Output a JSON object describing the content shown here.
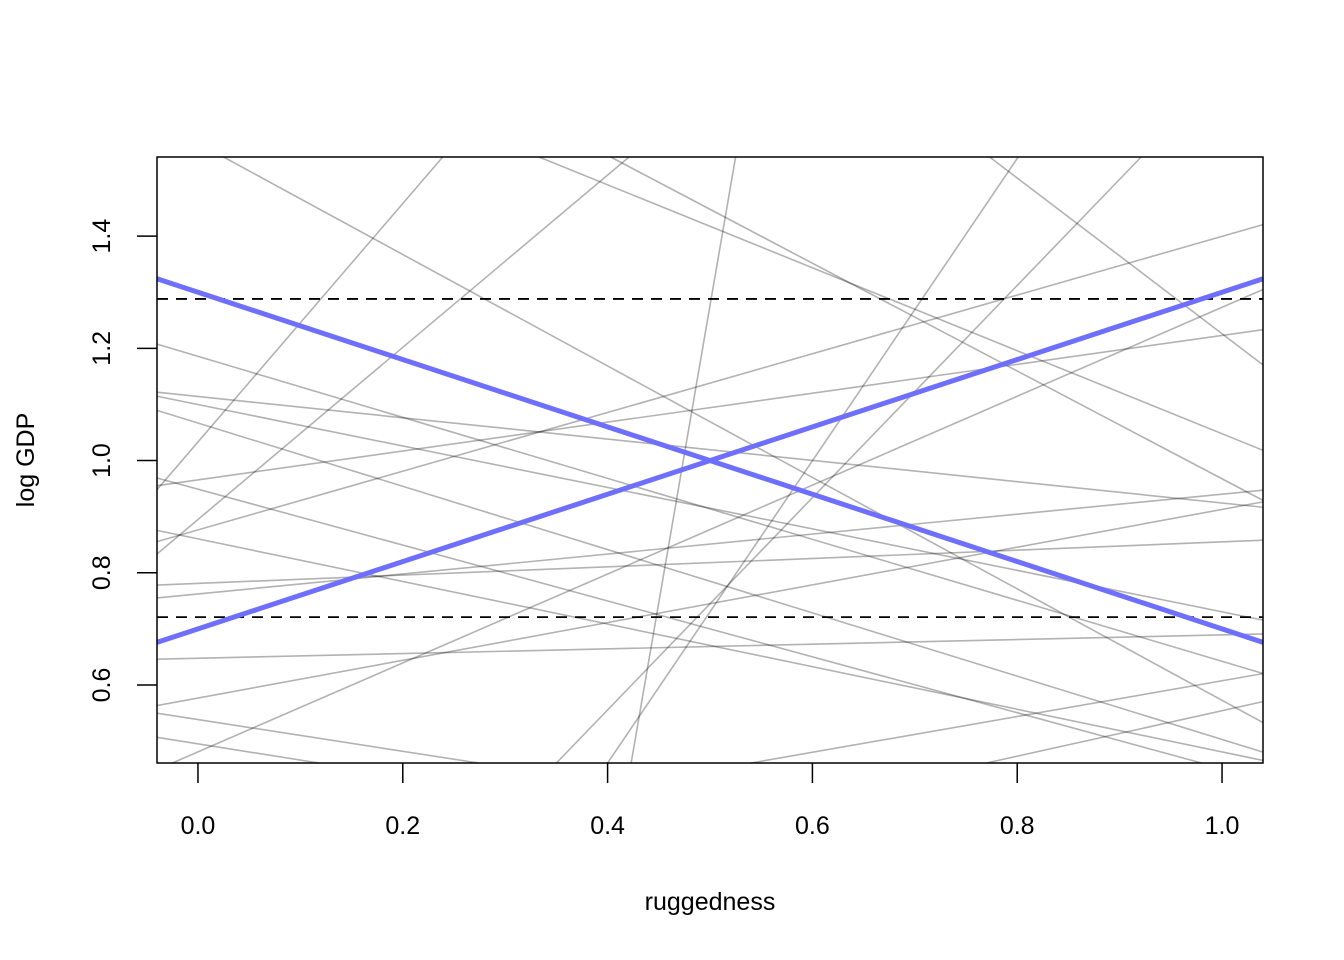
{
  "chart_data": {
    "type": "line",
    "title": "",
    "xlabel": "ruggedness",
    "ylabel": "log GDP",
    "xlim": [
      -0.04,
      1.04
    ],
    "ylim": [
      0.461,
      1.541
    ],
    "x_ticks": [
      "0.0",
      "0.2",
      "0.4",
      "0.6",
      "0.8",
      "1.0"
    ],
    "y_ticks": [
      "0.6",
      "0.8",
      "1.0",
      "1.2",
      "1.4"
    ],
    "grid": false,
    "colors": {
      "highlight": "#6f6fff",
      "sample": "#000000",
      "reference": "#000000"
    },
    "reference_lines": [
      {
        "y": 1.288,
        "style": "dashed"
      },
      {
        "y": 0.721,
        "style": "dashed"
      }
    ],
    "highlight_lines": [
      {
        "points": [
          [
            0.0,
            1.3
          ],
          [
            1.0,
            0.7
          ]
        ]
      },
      {
        "points": [
          [
            0.0,
            0.7
          ],
          [
            1.0,
            1.3
          ]
        ]
      }
    ],
    "sample_lines": [
      [
        [
          0.025,
          1.541
        ],
        [
          1.039,
          0.534
        ]
      ],
      [
        [
          -0.041,
          1.208
        ],
        [
          1.039,
          0.621
        ]
      ],
      [
        [
          -0.041,
          1.122
        ],
        [
          1.039,
          0.917
        ]
      ],
      [
        [
          -0.041,
          1.115
        ],
        [
          1.039,
          0.716
        ]
      ],
      [
        [
          -0.041,
          1.09
        ],
        [
          1.039,
          0.481
        ]
      ],
      [
        [
          -0.041,
          0.955
        ],
        [
          1.039,
          1.233
        ]
      ],
      [
        [
          -0.041,
          0.946
        ],
        [
          0.239,
          1.541
        ]
      ],
      [
        [
          -0.041,
          0.832
        ],
        [
          0.421,
          1.541
        ]
      ],
      [
        [
          -0.041,
          0.855
        ],
        [
          1.039,
          1.42
        ]
      ],
      [
        [
          -0.041,
          0.876
        ],
        [
          1.039,
          0.466
        ]
      ],
      [
        [
          -0.041,
          0.778
        ],
        [
          1.039,
          0.858
        ]
      ],
      [
        [
          -0.041,
          0.755
        ],
        [
          1.039,
          0.947
        ]
      ],
      [
        [
          -0.041,
          0.646
        ],
        [
          1.039,
          0.691
        ]
      ],
      [
        [
          -0.041,
          0.563
        ],
        [
          1.039,
          0.926
        ]
      ],
      [
        [
          -0.041,
          0.55
        ],
        [
          0.274,
          0.461
        ]
      ],
      [
        [
          -0.041,
          0.507
        ],
        [
          0.118,
          0.461
        ]
      ],
      [
        [
          -0.025,
          0.461
        ],
        [
          1.039,
          1.304
        ]
      ],
      [
        [
          0.333,
          1.541
        ],
        [
          1.039,
          1.019
        ]
      ],
      [
        [
          0.423,
          0.461
        ],
        [
          0.525,
          1.541
        ]
      ],
      [
        [
          0.403,
          1.541
        ],
        [
          1.039,
          0.93
        ]
      ],
      [
        [
          0.773,
          1.541
        ],
        [
          1.039,
          1.172
        ]
      ],
      [
        [
          0.35,
          0.461
        ],
        [
          0.921,
          1.541
        ]
      ],
      [
        [
          0.4,
          0.461
        ],
        [
          0.801,
          1.541
        ]
      ],
      [
        [
          0.77,
          0.461
        ],
        [
          1.039,
          0.57
        ]
      ],
      [
        [
          0.54,
          0.461
        ],
        [
          1.039,
          0.62
        ]
      ],
      [
        [
          0.5,
          0.7
        ],
        [
          0.98,
          0.461
        ]
      ]
    ]
  }
}
